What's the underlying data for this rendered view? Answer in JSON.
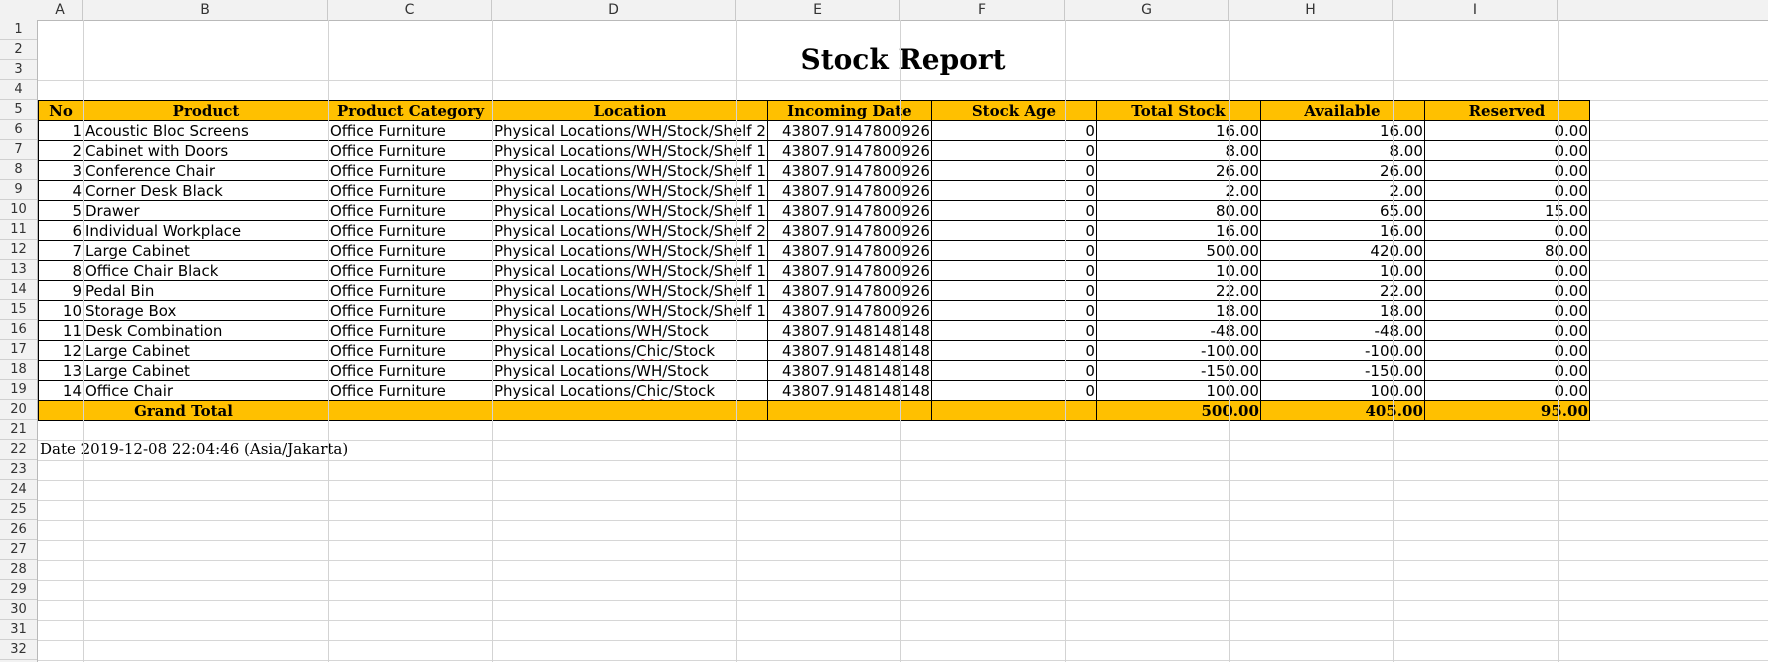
{
  "sheet": {
    "columns": [
      "A",
      "B",
      "C",
      "D",
      "E",
      "F",
      "G",
      "H",
      "I"
    ],
    "rows": [
      "1",
      "2",
      "3",
      "4",
      "5",
      "6",
      "7",
      "8",
      "9",
      "10",
      "11",
      "12",
      "13",
      "14",
      "15",
      "16",
      "17",
      "18",
      "19",
      "20",
      "21",
      "22",
      "23",
      "24",
      "25",
      "26",
      "27",
      "28",
      "29",
      "30",
      "31",
      "32"
    ]
  },
  "report": {
    "title": "Stock Report",
    "headers": [
      "No",
      "Product",
      "Product Category",
      "Location",
      "Incoming Date",
      "Stock Age",
      "Total Stock",
      "Available",
      "Reserved"
    ],
    "rows": [
      [
        "1",
        "Acoustic Bloc Screens",
        "Office Furniture",
        "Physical Locations/WH/Stock/Shelf 2",
        "43807.9147800926",
        "0",
        "16.00",
        "16.00",
        "0.00"
      ],
      [
        "2",
        "Cabinet with Doors",
        "Office Furniture",
        "Physical Locations/WH/Stock/Shelf 1",
        "43807.9147800926",
        "0",
        "8.00",
        "8.00",
        "0.00"
      ],
      [
        "3",
        "Conference Chair",
        "Office Furniture",
        "Physical Locations/WH/Stock/Shelf 1",
        "43807.9147800926",
        "0",
        "26.00",
        "26.00",
        "0.00"
      ],
      [
        "4",
        "Corner Desk Black",
        "Office Furniture",
        "Physical Locations/WH/Stock/Shelf 1",
        "43807.9147800926",
        "0",
        "2.00",
        "2.00",
        "0.00"
      ],
      [
        "5",
        "Drawer",
        "Office Furniture",
        "Physical Locations/WH/Stock/Shelf 1",
        "43807.9147800926",
        "0",
        "80.00",
        "65.00",
        "15.00"
      ],
      [
        "6",
        "Individual Workplace",
        "Office Furniture",
        "Physical Locations/WH/Stock/Shelf 2",
        "43807.9147800926",
        "0",
        "16.00",
        "16.00",
        "0.00"
      ],
      [
        "7",
        "Large Cabinet",
        "Office Furniture",
        "Physical Locations/WH/Stock/Shelf 1",
        "43807.9147800926",
        "0",
        "500.00",
        "420.00",
        "80.00"
      ],
      [
        "8",
        "Office Chair Black",
        "Office Furniture",
        "Physical Locations/WH/Stock/Shelf 1",
        "43807.9147800926",
        "0",
        "10.00",
        "10.00",
        "0.00"
      ],
      [
        "9",
        "Pedal Bin",
        "Office Furniture",
        "Physical Locations/WH/Stock/Shelf 1",
        "43807.9147800926",
        "0",
        "22.00",
        "22.00",
        "0.00"
      ],
      [
        "10",
        "Storage Box",
        "Office Furniture",
        "Physical Locations/WH/Stock/Shelf 1",
        "43807.9147800926",
        "0",
        "18.00",
        "18.00",
        "0.00"
      ],
      [
        "11",
        "Desk Combination",
        "Office Furniture",
        "Physical Locations/WH/Stock",
        "43807.9148148148",
        "0",
        "-48.00",
        "-48.00",
        "0.00"
      ],
      [
        "12",
        "Large Cabinet",
        "Office Furniture",
        "Physical Locations/Chic/Stock",
        "43807.9148148148",
        "0",
        "-100.00",
        "-100.00",
        "0.00"
      ],
      [
        "13",
        "Large Cabinet",
        "Office Furniture",
        "Physical Locations/WH/Stock",
        "43807.9148148148",
        "0",
        "-150.00",
        "-150.00",
        "0.00"
      ],
      [
        "14",
        "Office Chair",
        "Office Furniture",
        "Physical Locations/Chic/Stock",
        "43807.9148148148",
        "0",
        "100.00",
        "100.00",
        "0.00"
      ]
    ],
    "total": {
      "label": "Grand Total",
      "total_stock": "500.00",
      "available": "405.00",
      "reserved": "95.00"
    },
    "date_note": "Date 2019-12-08 22:04:46 (Asia/Jakarta)"
  },
  "colors": {
    "header_fill": "#ffc000",
    "gridline": "#d6d6d6",
    "spellcheck_underline": "#dd3333"
  }
}
